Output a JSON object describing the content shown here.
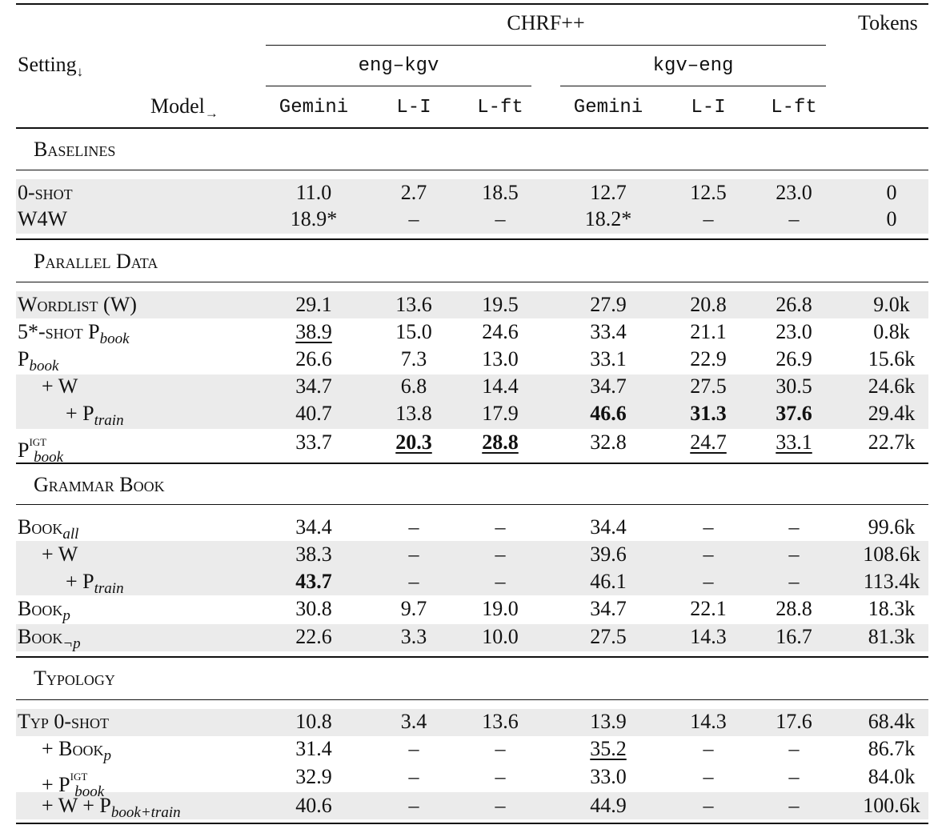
{
  "header": {
    "chrf": "CHRF++",
    "tokens": "Tokens",
    "setting": "Setting",
    "setting_arrow": "↓",
    "model": "Model",
    "model_arrow": "→",
    "pairs": [
      "eng–kgv",
      "kgv–eng"
    ],
    "models": [
      "Gemini",
      "L-I",
      "L-ft",
      "Gemini",
      "L-I",
      "L-ft"
    ]
  },
  "sections": [
    {
      "title": "Baselines",
      "rows": [
        {
          "label": "0-shot",
          "values": [
            "11.0",
            "2.7",
            "18.5",
            "12.7",
            "12.5",
            "23.0",
            "0"
          ]
        },
        {
          "label": "W4W",
          "values": [
            "18.9*",
            "–",
            "–",
            "18.2*",
            "–",
            "–",
            "0"
          ]
        }
      ]
    },
    {
      "title": "Parallel Data",
      "rows": [
        {
          "label": "Wordlist (W)",
          "values": [
            "29.1",
            "13.6",
            "19.5",
            "27.9",
            "20.8",
            "26.8",
            "9.0k"
          ]
        },
        {
          "label": "5*-shot P",
          "sub": "book",
          "values": [
            "38.9",
            "15.0",
            "24.6",
            "33.4",
            "21.1",
            "23.0",
            "0.8k"
          ]
        },
        {
          "label": "P",
          "sub": "book",
          "values": [
            "26.6",
            "7.3",
            "13.0",
            "33.1",
            "22.9",
            "26.9",
            "15.6k"
          ]
        },
        {
          "label": "+ W",
          "values": [
            "34.7",
            "6.8",
            "14.4",
            "34.7",
            "27.5",
            "30.5",
            "24.6k"
          ]
        },
        {
          "label": "+ P",
          "sub": "train",
          "values": [
            "40.7",
            "13.8",
            "17.9",
            "46.6",
            "31.3",
            "37.6",
            "29.4k"
          ]
        },
        {
          "label": "P",
          "sup": "IGT",
          "sub": "book",
          "values": [
            "33.7",
            "20.3",
            "28.8",
            "32.8",
            "24.7",
            "33.1",
            "22.7k"
          ]
        }
      ]
    },
    {
      "title": "Grammar Book",
      "rows": [
        {
          "label": "Book",
          "sub": "all",
          "values": [
            "34.4",
            "–",
            "–",
            "34.4",
            "–",
            "–",
            "99.6k"
          ]
        },
        {
          "label": "+ W",
          "values": [
            "38.3",
            "–",
            "–",
            "39.6",
            "–",
            "–",
            "108.6k"
          ]
        },
        {
          "label": "+ P",
          "sub": "train",
          "values": [
            "43.7",
            "–",
            "–",
            "46.1",
            "–",
            "–",
            "113.4k"
          ]
        },
        {
          "label": "Book",
          "sub": "p",
          "values": [
            "30.8",
            "9.7",
            "19.0",
            "34.7",
            "22.1",
            "28.8",
            "18.3k"
          ]
        },
        {
          "label": "Book",
          "sub": "¬p",
          "values": [
            "22.6",
            "3.3",
            "10.0",
            "27.5",
            "14.3",
            "16.7",
            "81.3k"
          ]
        }
      ]
    },
    {
      "title": "Typology",
      "rows": [
        {
          "label": "Typ 0-shot",
          "values": [
            "10.8",
            "3.4",
            "13.6",
            "13.9",
            "14.3",
            "17.6",
            "68.4k"
          ]
        },
        {
          "label": "+ Book",
          "sub": "p",
          "values": [
            "31.4",
            "–",
            "–",
            "35.2",
            "–",
            "–",
            "86.7k"
          ]
        },
        {
          "label": "+ P",
          "sup": "IGT",
          "sub": "book",
          "values": [
            "32.9",
            "–",
            "–",
            "33.0",
            "–",
            "–",
            "84.0k"
          ]
        },
        {
          "label": "+ W + P",
          "sub": "book+train",
          "values": [
            "40.6",
            "–",
            "–",
            "44.9",
            "–",
            "–",
            "100.6k"
          ]
        }
      ]
    }
  ]
}
